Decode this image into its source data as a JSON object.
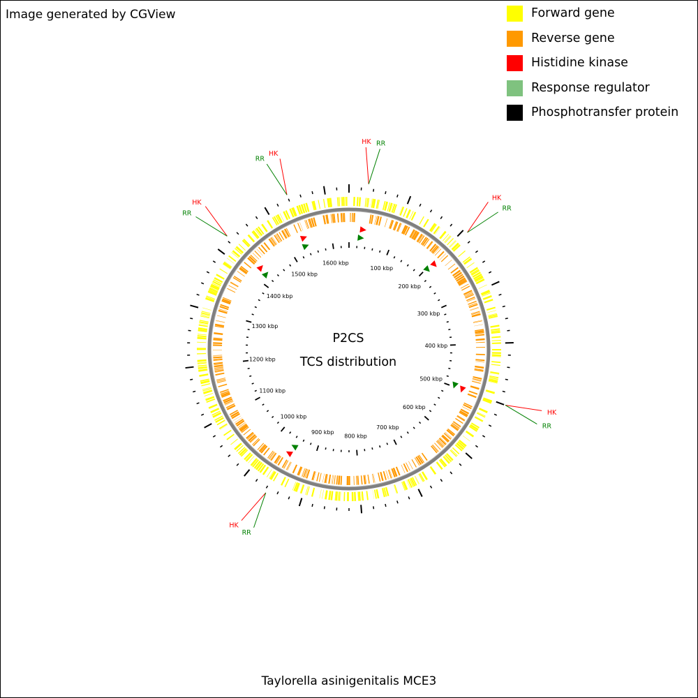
{
  "header": {
    "credit": "Image generated by CGView"
  },
  "footer": {
    "organism": "Taylorella asinigenitalis MCE3"
  },
  "legend": {
    "items": [
      {
        "label": "Forward gene",
        "color": "#ffff00"
      },
      {
        "label": "Reverse gene",
        "color": "#ff9900"
      },
      {
        "label": "Histidine kinase",
        "color": "#ff0000"
      },
      {
        "label": "Response regulator",
        "color": "#7fc27f"
      },
      {
        "label": "Phosphotransfer protein",
        "color": "#000000"
      }
    ]
  },
  "map": {
    "title_line1": "P2CS",
    "title_line2": "TCS distribution",
    "genome_length_kbp": 1640,
    "kbp_labels": [
      "100 kbp",
      "200 kbp",
      "300 kbp",
      "400 kbp",
      "500 kbp",
      "600 kbp",
      "700 kbp",
      "800 kbp",
      "900 kbp",
      "1000 kbp",
      "1100 kbp",
      "1200 kbp",
      "1300 kbp",
      "1400 kbp",
      "1500 kbp",
      "1600 kbp"
    ],
    "tcs_loci": [
      {
        "kbp": 31,
        "hk": "HK",
        "rr": "RR"
      },
      {
        "kbp": 207,
        "hk": "HK",
        "rr": "RR"
      },
      {
        "kbp": 500,
        "hk": "HK",
        "rr": "RR"
      },
      {
        "kbp": 957,
        "hk": "HK",
        "rr": "RR"
      },
      {
        "kbp": 1425,
        "hk": "HK",
        "rr": "RR"
      },
      {
        "kbp": 1540,
        "hk": "HK",
        "rr": "RR"
      }
    ],
    "colors": {
      "hk": "#ff0000",
      "rr": "#008000",
      "hk_label": "#ff0000",
      "rr_label": "#008000",
      "backbone": "#808080"
    }
  }
}
